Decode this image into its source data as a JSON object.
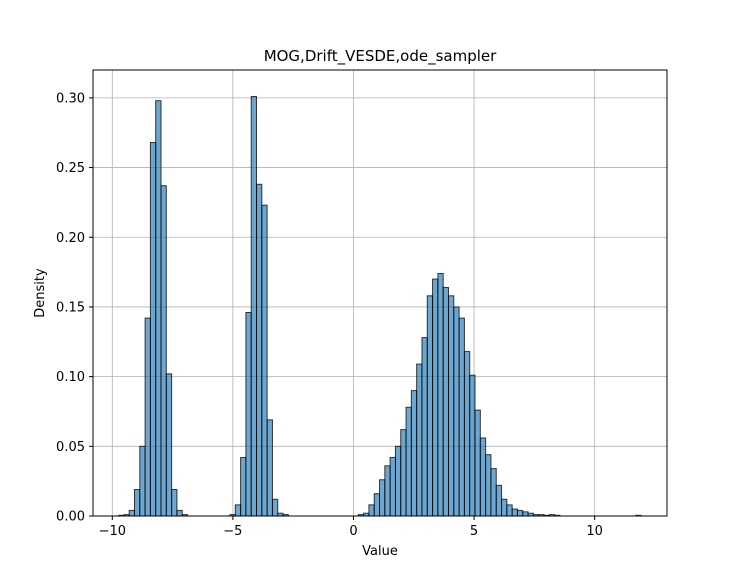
{
  "chart_data": {
    "type": "bar",
    "title": "MOG,Drift_VESDE,ode_sampler",
    "xlabel": "Value",
    "ylabel": "Density",
    "xlim": [
      -10.8,
      13.0
    ],
    "ylim": [
      0,
      0.32
    ],
    "grid": true,
    "bar_color": "#1f77b4",
    "bar_alpha": 0.65,
    "edge_color": "#000000",
    "x_ticks": [
      -10,
      -5,
      0,
      5,
      10
    ],
    "y_ticks": [
      0.0,
      0.05,
      0.1,
      0.15,
      0.2,
      0.25,
      0.3
    ],
    "x_tick_labels": [
      "−10",
      "−5",
      "0",
      "5",
      "10"
    ],
    "y_tick_labels": [
      "0.00",
      "0.05",
      "0.10",
      "0.15",
      "0.20",
      "0.25",
      "0.30"
    ],
    "bin_width": 0.22,
    "bins": [
      {
        "x": -9.74,
        "density": 0.0005
      },
      {
        "x": -9.52,
        "density": 0.001
      },
      {
        "x": -9.3,
        "density": 0.004
      },
      {
        "x": -9.08,
        "density": 0.019
      },
      {
        "x": -8.86,
        "density": 0.05
      },
      {
        "x": -8.64,
        "density": 0.142
      },
      {
        "x": -8.42,
        "density": 0.268
      },
      {
        "x": -8.2,
        "density": 0.298
      },
      {
        "x": -7.98,
        "density": 0.237
      },
      {
        "x": -7.76,
        "density": 0.102
      },
      {
        "x": -7.54,
        "density": 0.019
      },
      {
        "x": -7.32,
        "density": 0.004
      },
      {
        "x": -7.1,
        "density": 0.001
      },
      {
        "x": -5.12,
        "density": 0.001
      },
      {
        "x": -4.9,
        "density": 0.008
      },
      {
        "x": -4.68,
        "density": 0.042
      },
      {
        "x": -4.46,
        "density": 0.146
      },
      {
        "x": -4.24,
        "density": 0.301
      },
      {
        "x": -4.02,
        "density": 0.238
      },
      {
        "x": -3.8,
        "density": 0.223
      },
      {
        "x": -3.58,
        "density": 0.069
      },
      {
        "x": -3.36,
        "density": 0.012
      },
      {
        "x": -3.14,
        "density": 0.002
      },
      {
        "x": -2.92,
        "density": 0.001
      },
      {
        "x": 0.2,
        "density": 0.001
      },
      {
        "x": 0.42,
        "density": 0.002
      },
      {
        "x": 0.64,
        "density": 0.008
      },
      {
        "x": 0.86,
        "density": 0.016
      },
      {
        "x": 1.08,
        "density": 0.026
      },
      {
        "x": 1.3,
        "density": 0.036
      },
      {
        "x": 1.52,
        "density": 0.042
      },
      {
        "x": 1.74,
        "density": 0.05
      },
      {
        "x": 1.96,
        "density": 0.062
      },
      {
        "x": 2.18,
        "density": 0.078
      },
      {
        "x": 2.4,
        "density": 0.09
      },
      {
        "x": 2.62,
        "density": 0.109
      },
      {
        "x": 2.84,
        "density": 0.128
      },
      {
        "x": 3.06,
        "density": 0.158
      },
      {
        "x": 3.28,
        "density": 0.17
      },
      {
        "x": 3.5,
        "density": 0.174
      },
      {
        "x": 3.72,
        "density": 0.164
      },
      {
        "x": 3.94,
        "density": 0.158
      },
      {
        "x": 4.16,
        "density": 0.15
      },
      {
        "x": 4.38,
        "density": 0.142
      },
      {
        "x": 4.6,
        "density": 0.118
      },
      {
        "x": 4.82,
        "density": 0.101
      },
      {
        "x": 5.04,
        "density": 0.076
      },
      {
        "x": 5.26,
        "density": 0.056
      },
      {
        "x": 5.48,
        "density": 0.044
      },
      {
        "x": 5.7,
        "density": 0.034
      },
      {
        "x": 5.92,
        "density": 0.022
      },
      {
        "x": 6.14,
        "density": 0.012
      },
      {
        "x": 6.36,
        "density": 0.008
      },
      {
        "x": 6.58,
        "density": 0.005
      },
      {
        "x": 6.8,
        "density": 0.004
      },
      {
        "x": 7.02,
        "density": 0.003
      },
      {
        "x": 7.24,
        "density": 0.002
      },
      {
        "x": 7.46,
        "density": 0.001
      },
      {
        "x": 7.68,
        "density": 0.001
      },
      {
        "x": 7.9,
        "density": 0.0005
      },
      {
        "x": 8.12,
        "density": 0.001
      },
      {
        "x": 8.34,
        "density": 0.0005
      },
      {
        "x": 11.7,
        "density": 0.0005
      }
    ]
  }
}
